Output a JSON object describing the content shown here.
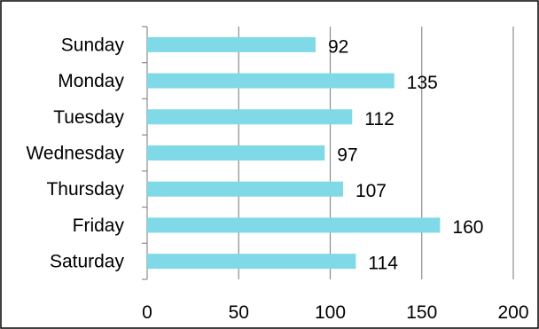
{
  "chart_data": {
    "type": "bar",
    "orientation": "horizontal",
    "categories": [
      "Sunday",
      "Monday",
      "Tuesday",
      "Wednesday",
      "Thursday",
      "Friday",
      "Saturday"
    ],
    "values": [
      92,
      135,
      112,
      97,
      107,
      160,
      114
    ],
    "data_labels": [
      "92",
      "135",
      "112",
      "97",
      "107",
      "160",
      "114"
    ],
    "title": "",
    "xlabel": "",
    "ylabel": "",
    "xlim": [
      0,
      200
    ],
    "x_ticks": [
      0,
      50,
      100,
      150,
      200
    ],
    "x_tick_labels": [
      "0",
      "50",
      "100",
      "150",
      "200"
    ],
    "grid": "vertical major gridlines",
    "legend": "none",
    "bar_color": "#7fd9e6",
    "grid_color": "#8c8c8c",
    "border_color": "#000000"
  }
}
